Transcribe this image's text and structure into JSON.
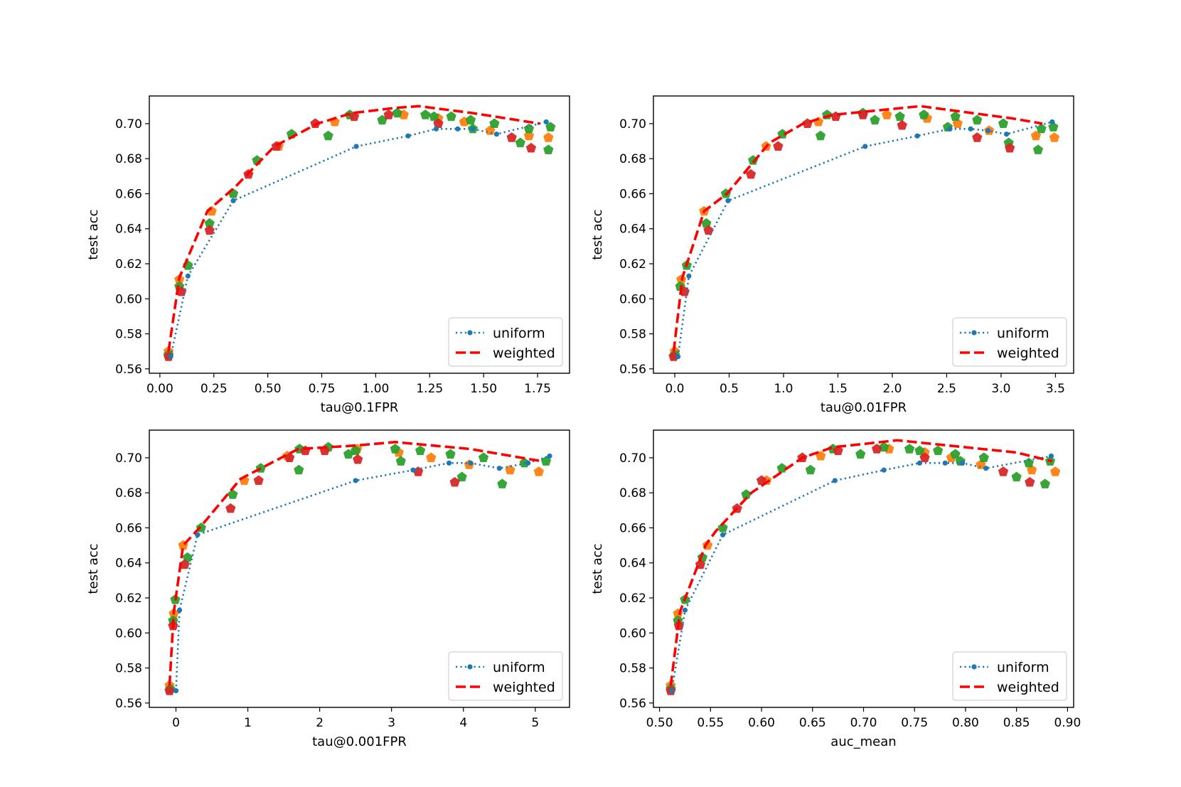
{
  "legend": {
    "uniform": "uniform",
    "weighted": "weighted"
  },
  "colors": {
    "uniform": "#1f77b4",
    "weighted": "#ff0000",
    "scatter": [
      "#ff7f0e",
      "#2ca02c",
      "#d62728"
    ]
  },
  "chart_data": [
    {
      "type": "line",
      "xlabel": "tau@0.1FPR",
      "ylabel": "test acc",
      "xlim": [
        -0.049,
        1.898
      ],
      "ylim": [
        0.5575,
        0.7158
      ],
      "xticks": [
        0.0,
        0.25,
        0.5,
        0.75,
        1.0,
        1.25,
        1.5,
        1.75
      ],
      "xtick_labels": [
        "0.00",
        "0.25",
        "0.50",
        "0.75",
        "1.00",
        "1.25",
        "1.50",
        "1.75"
      ],
      "yticks": [
        0.56,
        0.58,
        0.6,
        0.62,
        0.64,
        0.66,
        0.68,
        0.7
      ],
      "ytick_labels": [
        "0.56",
        "0.58",
        "0.60",
        "0.62",
        "0.64",
        "0.66",
        "0.68",
        "0.70"
      ],
      "legend_position": "lower right",
      "series": [
        {
          "name": "uniform",
          "style": "dotted-dot",
          "x": [
            0.05,
            0.13,
            0.34,
            0.91,
            1.15,
            1.28,
            1.38,
            1.45,
            1.56,
            1.79
          ],
          "y": [
            0.567,
            0.613,
            0.656,
            0.687,
            0.693,
            0.697,
            0.697,
            0.697,
            0.694,
            0.701
          ]
        },
        {
          "name": "weighted",
          "style": "dashed",
          "x": [
            0.04,
            0.09,
            0.22,
            0.35,
            0.53,
            0.73,
            0.89,
            1.09,
            1.2,
            1.45,
            1.76
          ],
          "y": [
            0.57,
            0.612,
            0.65,
            0.664,
            0.687,
            0.7,
            0.706,
            0.709,
            0.71,
            0.706,
            0.7
          ]
        },
        {
          "name": "orange",
          "style": "pentagon",
          "x": [
            0.04,
            0.09,
            0.24,
            0.55,
            0.81,
            1.13,
            1.29,
            1.41,
            1.53,
            1.71,
            1.8
          ],
          "y": [
            0.57,
            0.611,
            0.65,
            0.687,
            0.701,
            0.705,
            0.703,
            0.701,
            0.696,
            0.693,
            0.692
          ]
        },
        {
          "name": "green",
          "style": "pentagon",
          "x": [
            0.04,
            0.09,
            0.13,
            0.23,
            0.34,
            0.45,
            0.61,
            0.78,
            0.88,
            1.03,
            1.1,
            1.23,
            1.27,
            1.35,
            1.44,
            1.45,
            1.55,
            1.67,
            1.71,
            1.8,
            1.81
          ],
          "y": [
            0.568,
            0.607,
            0.619,
            0.643,
            0.66,
            0.679,
            0.694,
            0.693,
            0.705,
            0.702,
            0.706,
            0.705,
            0.704,
            0.704,
            0.702,
            0.697,
            0.7,
            0.689,
            0.697,
            0.685,
            0.698
          ]
        },
        {
          "name": "red",
          "style": "pentagon",
          "x": [
            0.04,
            0.1,
            0.23,
            0.41,
            0.54,
            0.72,
            0.9,
            1.06,
            1.29,
            1.63,
            1.72
          ],
          "y": [
            0.567,
            0.604,
            0.639,
            0.671,
            0.687,
            0.7,
            0.704,
            0.705,
            0.7,
            0.692,
            0.686
          ]
        }
      ]
    },
    {
      "type": "line",
      "xlabel": "tau@0.01FPR",
      "ylabel": "test acc",
      "xlim": [
        -0.196,
        3.667
      ],
      "ylim": [
        0.5575,
        0.7158
      ],
      "xticks": [
        0.0,
        0.5,
        1.0,
        1.5,
        2.0,
        2.5,
        3.0,
        3.5
      ],
      "xtick_labels": [
        "0.0",
        "0.5",
        "1.0",
        "1.5",
        "2.0",
        "2.5",
        "3.0",
        "3.5"
      ],
      "yticks": [
        0.56,
        0.58,
        0.6,
        0.62,
        0.64,
        0.66,
        0.68,
        0.7
      ],
      "ytick_labels": [
        "0.56",
        "0.58",
        "0.60",
        "0.62",
        "0.64",
        "0.66",
        "0.68",
        "0.70"
      ],
      "legend_position": "lower right",
      "series": [
        {
          "name": "uniform",
          "style": "dotted-dot",
          "x": [
            0.03,
            0.13,
            0.49,
            1.75,
            2.23,
            2.53,
            2.72,
            2.88,
            3.05,
            3.47
          ],
          "y": [
            0.567,
            0.613,
            0.656,
            0.687,
            0.693,
            0.697,
            0.697,
            0.696,
            0.694,
            0.701
          ]
        },
        {
          "name": "weighted",
          "style": "dashed",
          "x": [
            -0.01,
            0.07,
            0.27,
            0.48,
            0.87,
            1.18,
            1.45,
            1.94,
            2.26,
            2.62,
            3.1,
            3.38
          ],
          "y": [
            0.57,
            0.612,
            0.65,
            0.66,
            0.689,
            0.7,
            0.705,
            0.708,
            0.71,
            0.707,
            0.703,
            0.7
          ]
        },
        {
          "name": "orange",
          "style": "pentagon",
          "x": [
            0.0,
            0.06,
            0.27,
            0.84,
            1.32,
            1.95,
            2.32,
            2.6,
            2.89,
            3.32,
            3.49
          ],
          "y": [
            0.57,
            0.611,
            0.65,
            0.687,
            0.701,
            0.705,
            0.703,
            0.7,
            0.696,
            0.693,
            0.692
          ]
        },
        {
          "name": "green",
          "style": "pentagon",
          "x": [
            0.0,
            0.05,
            0.11,
            0.29,
            0.47,
            0.72,
            0.99,
            1.34,
            1.4,
            1.73,
            1.84,
            2.07,
            2.29,
            2.51,
            2.58,
            2.78,
            3.02,
            3.07,
            3.34,
            3.37,
            3.48
          ],
          "y": [
            0.568,
            0.607,
            0.619,
            0.643,
            0.66,
            0.679,
            0.694,
            0.693,
            0.705,
            0.706,
            0.702,
            0.704,
            0.705,
            0.698,
            0.704,
            0.702,
            0.7,
            0.689,
            0.685,
            0.697,
            0.698
          ]
        },
        {
          "name": "red",
          "style": "pentagon",
          "x": [
            -0.01,
            0.09,
            0.31,
            0.7,
            0.95,
            1.22,
            1.48,
            1.73,
            2.09,
            2.78,
            3.08
          ],
          "y": [
            0.567,
            0.604,
            0.639,
            0.671,
            0.687,
            0.7,
            0.704,
            0.705,
            0.699,
            0.692,
            0.686
          ]
        }
      ]
    },
    {
      "type": "line",
      "xlabel": "tau@0.001FPR",
      "ylabel": "test acc",
      "xlim": [
        -0.371,
        5.477
      ],
      "ylim": [
        0.5575,
        0.7158
      ],
      "xticks": [
        0,
        1,
        2,
        3,
        4,
        5
      ],
      "xtick_labels": [
        "0",
        "1",
        "2",
        "3",
        "4",
        "5"
      ],
      "yticks": [
        0.56,
        0.58,
        0.6,
        0.62,
        0.64,
        0.66,
        0.68,
        0.7
      ],
      "ytick_labels": [
        "0.56",
        "0.58",
        "0.60",
        "0.62",
        "0.64",
        "0.66",
        "0.68",
        "0.70"
      ],
      "legend_position": "lower right",
      "series": [
        {
          "name": "uniform",
          "style": "dotted-dot",
          "x": [
            0.0,
            0.05,
            0.3,
            2.5,
            3.3,
            3.8,
            4.1,
            4.5,
            4.9,
            5.2
          ],
          "y": [
            0.567,
            0.613,
            0.656,
            0.687,
            0.693,
            0.697,
            0.697,
            0.694,
            0.697,
            0.701
          ]
        },
        {
          "name": "weighted",
          "style": "dashed",
          "x": [
            -0.09,
            -0.03,
            0.1,
            0.35,
            0.9,
            1.7,
            2.5,
            3.05,
            4.1,
            5.1
          ],
          "y": [
            0.57,
            0.612,
            0.65,
            0.661,
            0.688,
            0.705,
            0.707,
            0.709,
            0.705,
            0.698
          ]
        },
        {
          "name": "orange",
          "style": "pentagon",
          "x": [
            -0.09,
            -0.03,
            0.1,
            0.95,
            1.55,
            2.52,
            3.1,
            3.55,
            4.08,
            4.65,
            5.05
          ],
          "y": [
            0.57,
            0.611,
            0.65,
            0.687,
            0.701,
            0.705,
            0.703,
            0.7,
            0.696,
            0.693,
            0.692
          ]
        },
        {
          "name": "green",
          "style": "pentagon",
          "x": [
            -0.08,
            -0.04,
            -0.01,
            0.16,
            0.35,
            0.79,
            1.18,
            1.71,
            1.72,
            2.12,
            2.4,
            2.5,
            3.05,
            3.13,
            3.4,
            3.82,
            3.98,
            4.28,
            4.54,
            4.85,
            5.15
          ],
          "y": [
            0.568,
            0.607,
            0.619,
            0.643,
            0.66,
            0.679,
            0.694,
            0.693,
            0.705,
            0.706,
            0.702,
            0.704,
            0.705,
            0.698,
            0.704,
            0.702,
            0.689,
            0.7,
            0.685,
            0.697,
            0.698
          ]
        },
        {
          "name": "red",
          "style": "pentagon",
          "x": [
            -0.09,
            -0.04,
            0.12,
            0.76,
            1.15,
            1.58,
            1.8,
            2.07,
            2.53,
            3.37,
            3.88
          ],
          "y": [
            0.567,
            0.604,
            0.639,
            0.671,
            0.687,
            0.7,
            0.704,
            0.704,
            0.699,
            0.692,
            0.686
          ]
        }
      ]
    },
    {
      "type": "line",
      "xlabel": "auc_mean",
      "ylabel": "test acc",
      "xlim": [
        0.494,
        0.906
      ],
      "ylim": [
        0.5575,
        0.7158
      ],
      "xticks": [
        0.5,
        0.55,
        0.6,
        0.65,
        0.7,
        0.75,
        0.8,
        0.85,
        0.9
      ],
      "xtick_labels": [
        "0.50",
        "0.55",
        "0.60",
        "0.65",
        "0.70",
        "0.75",
        "0.80",
        "0.85",
        "0.90"
      ],
      "yticks": [
        0.56,
        0.58,
        0.6,
        0.62,
        0.64,
        0.66,
        0.68,
        0.7
      ],
      "ytick_labels": [
        "0.56",
        "0.58",
        "0.60",
        "0.62",
        "0.64",
        "0.66",
        "0.68",
        "0.70"
      ],
      "legend_position": "lower right",
      "series": [
        {
          "name": "uniform",
          "style": "dotted-dot",
          "x": [
            0.512,
            0.525,
            0.562,
            0.672,
            0.72,
            0.755,
            0.78,
            0.797,
            0.82,
            0.884
          ],
          "y": [
            0.567,
            0.613,
            0.656,
            0.687,
            0.693,
            0.697,
            0.697,
            0.697,
            0.694,
            0.701
          ]
        },
        {
          "name": "weighted",
          "style": "dashed",
          "x": [
            0.511,
            0.52,
            0.545,
            0.555,
            0.59,
            0.615,
            0.64,
            0.67,
            0.733,
            0.8,
            0.85,
            0.885
          ],
          "y": [
            0.57,
            0.612,
            0.65,
            0.658,
            0.68,
            0.69,
            0.7,
            0.706,
            0.71,
            0.706,
            0.703,
            0.698
          ]
        },
        {
          "name": "orange",
          "style": "pentagon",
          "x": [
            0.511,
            0.518,
            0.547,
            0.605,
            0.658,
            0.725,
            0.76,
            0.786,
            0.815,
            0.865,
            0.888
          ],
          "y": [
            0.57,
            0.611,
            0.65,
            0.687,
            0.701,
            0.705,
            0.703,
            0.7,
            0.696,
            0.693,
            0.692
          ]
        },
        {
          "name": "green",
          "style": "pentagon",
          "x": [
            0.511,
            0.518,
            0.525,
            0.542,
            0.562,
            0.585,
            0.62,
            0.648,
            0.67,
            0.697,
            0.72,
            0.745,
            0.755,
            0.773,
            0.79,
            0.795,
            0.818,
            0.85,
            0.862,
            0.878,
            0.883
          ],
          "y": [
            0.568,
            0.607,
            0.619,
            0.643,
            0.66,
            0.679,
            0.694,
            0.693,
            0.705,
            0.702,
            0.706,
            0.705,
            0.704,
            0.704,
            0.702,
            0.698,
            0.7,
            0.689,
            0.697,
            0.685,
            0.698
          ]
        },
        {
          "name": "red",
          "style": "pentagon",
          "x": [
            0.511,
            0.519,
            0.54,
            0.576,
            0.6,
            0.64,
            0.675,
            0.713,
            0.76,
            0.837,
            0.863
          ],
          "y": [
            0.567,
            0.604,
            0.639,
            0.671,
            0.687,
            0.7,
            0.704,
            0.705,
            0.7,
            0.692,
            0.686
          ]
        }
      ]
    }
  ]
}
